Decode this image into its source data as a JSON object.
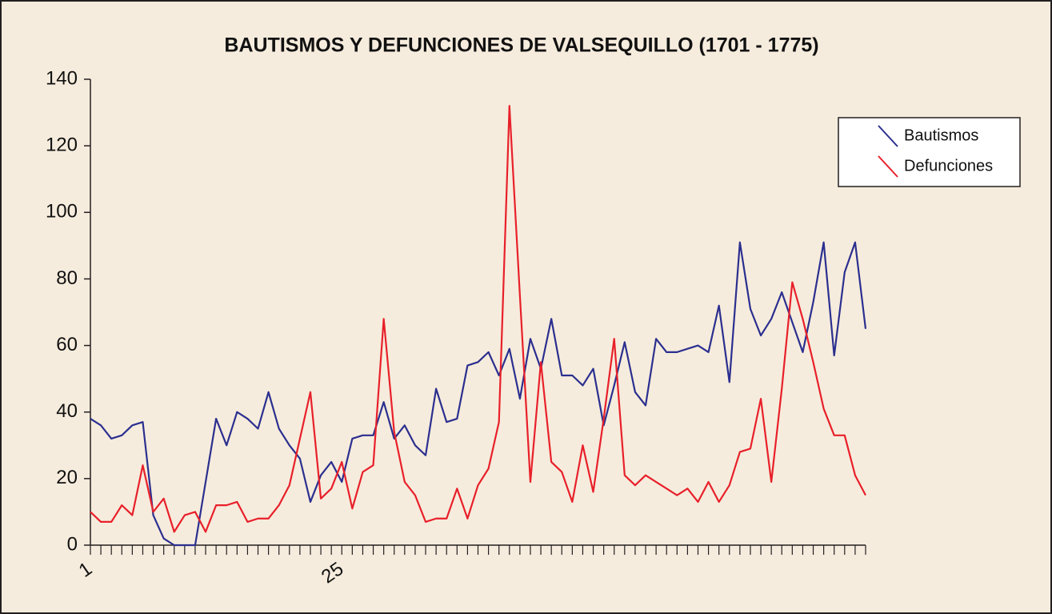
{
  "chart_data": {
    "type": "line",
    "title": "BAUTISMOS Y DEFUNCIONES DE VALSEQUILLO (1701 - 1775)",
    "categories": [
      "1",
      null,
      null,
      null,
      null,
      null,
      null,
      null,
      null,
      null,
      null,
      null,
      null,
      null,
      null,
      null,
      null,
      null,
      null,
      null,
      null,
      null,
      null,
      null,
      "25",
      null,
      null,
      null,
      null,
      null,
      null,
      null,
      null,
      null,
      null,
      null,
      null,
      null,
      null,
      null,
      null,
      null,
      null,
      null,
      null,
      null,
      null,
      null,
      null,
      null,
      null,
      null,
      null,
      null,
      null,
      null,
      null,
      null,
      null,
      null,
      null,
      null,
      null,
      null,
      null,
      null,
      null,
      null,
      null,
      null,
      null,
      null,
      null,
      null,
      null
    ],
    "series": [
      {
        "name": "Bautismos",
        "color": "#2b2f8f",
        "values": [
          38,
          36,
          32,
          33,
          36,
          37,
          9,
          2,
          0,
          0,
          0,
          19,
          38,
          30,
          40,
          38,
          35,
          46,
          35,
          30,
          26,
          13,
          21,
          25,
          19,
          32,
          33,
          33,
          43,
          32,
          36,
          30,
          27,
          47,
          37,
          38,
          54,
          55,
          58,
          51,
          59,
          44,
          62,
          53,
          68,
          51,
          51,
          48,
          53,
          36,
          48,
          61,
          46,
          42,
          62,
          58,
          58,
          59,
          60,
          58,
          72,
          49,
          91,
          71,
          63,
          68,
          76,
          67,
          58,
          73,
          91,
          57,
          82,
          91,
          65
        ]
      },
      {
        "name": "Defunciones",
        "color": "#e8202a",
        "values": [
          10,
          7,
          7,
          12,
          9,
          24,
          10,
          14,
          4,
          9,
          10,
          4,
          12,
          12,
          13,
          7,
          8,
          8,
          12,
          18,
          32,
          46,
          14,
          17,
          25,
          11,
          22,
          24,
          68,
          34,
          19,
          15,
          7,
          8,
          8,
          17,
          8,
          18,
          23,
          37,
          132,
          75,
          19,
          55,
          25,
          22,
          13,
          30,
          16,
          38,
          62,
          21,
          18,
          21,
          19,
          17,
          15,
          17,
          13,
          19,
          13,
          18,
          28,
          29,
          44,
          19,
          47,
          79,
          68,
          55,
          41,
          33,
          33,
          21,
          15
        ]
      }
    ],
    "ylim": [
      0,
      140
    ],
    "yticks": [
      0,
      20,
      40,
      60,
      80,
      100,
      120,
      140
    ],
    "legend": "upper-right"
  }
}
